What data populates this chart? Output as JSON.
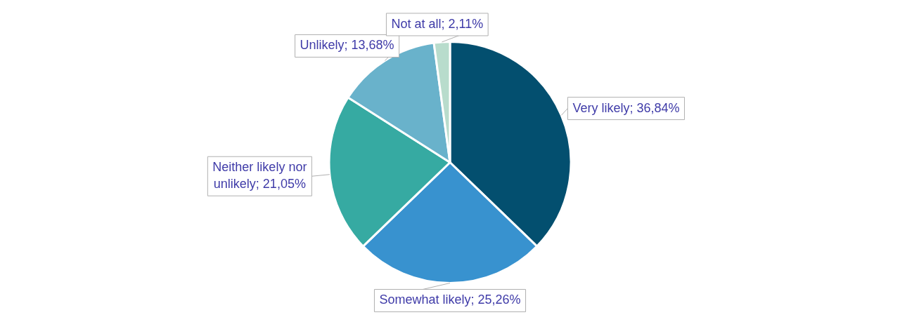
{
  "chart_data": {
    "type": "pie",
    "categories": [
      "Very likely",
      "Somewhat likely",
      "Neither likely nor unlikely",
      "Unlikely",
      "Not at all"
    ],
    "values": [
      36.84,
      25.26,
      21.05,
      13.68,
      2.11
    ],
    "value_labels": [
      "; 36,84%",
      "; 25,26%",
      "; 21,05%",
      "; 13,68%",
      "; 2,11%"
    ],
    "colors": [
      "#034f6f",
      "#3892cf",
      "#36aaa2",
      "#69b2cb",
      "#b8dccc"
    ],
    "legend": false
  }
}
